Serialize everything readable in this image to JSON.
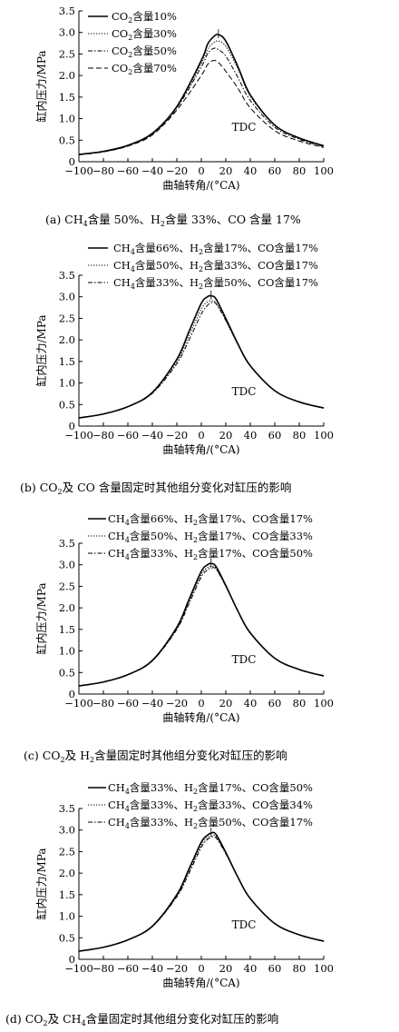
{
  "chart_data": [
    {
      "type": "line",
      "caption": "(a) CH₄含量 50%、H₂含量 33%、CO 含量 17%",
      "xlabel": "曲轴转角/(°CA)",
      "ylabel": "缸内压力/MPa",
      "xlim": [
        -100,
        100
      ],
      "ylim": [
        0,
        3.5
      ],
      "xticks": [
        "−100",
        "−80",
        "−60",
        "−40",
        "−20",
        "0",
        "20",
        "40",
        "60",
        "80",
        "100"
      ],
      "yticks": [
        "0",
        "0.5",
        "1.0",
        "1.5",
        "2.0",
        "2.5",
        "3.0",
        "3.5"
      ],
      "annotation": "TDC",
      "legend_position": "top-left",
      "series": [
        {
          "name": "CO₂含量10%",
          "style": "solid",
          "x": [
            -100,
            -80,
            -60,
            -40,
            -20,
            0,
            5,
            10,
            14,
            20,
            30,
            40,
            60,
            80,
            100
          ],
          "y": [
            0.17,
            0.24,
            0.38,
            0.66,
            1.28,
            2.35,
            2.72,
            2.9,
            2.95,
            2.8,
            2.2,
            1.55,
            0.85,
            0.55,
            0.37
          ]
        },
        {
          "name": "CO₂含量30%",
          "style": "dotted",
          "x": [
            -100,
            -80,
            -60,
            -40,
            -20,
            0,
            5,
            10,
            14,
            20,
            30,
            40,
            60,
            80,
            100
          ],
          "y": [
            0.17,
            0.24,
            0.38,
            0.66,
            1.27,
            2.28,
            2.6,
            2.76,
            2.8,
            2.68,
            2.15,
            1.52,
            0.84,
            0.55,
            0.37
          ]
        },
        {
          "name": "CO₂含量50%",
          "style": "dashdot",
          "x": [
            -100,
            -80,
            -60,
            -40,
            -20,
            0,
            5,
            10,
            14,
            20,
            30,
            40,
            60,
            80,
            100
          ],
          "y": [
            0.16,
            0.23,
            0.37,
            0.64,
            1.25,
            2.2,
            2.5,
            2.63,
            2.6,
            2.45,
            1.95,
            1.42,
            0.8,
            0.52,
            0.35
          ]
        },
        {
          "name": "CO₂含量70%",
          "style": "dashed",
          "x": [
            -100,
            -80,
            -60,
            -40,
            -20,
            0,
            5,
            10,
            14,
            20,
            30,
            40,
            60,
            80,
            100
          ],
          "y": [
            0.16,
            0.23,
            0.36,
            0.62,
            1.2,
            2.0,
            2.25,
            2.35,
            2.3,
            2.1,
            1.7,
            1.25,
            0.72,
            0.48,
            0.33
          ]
        }
      ]
    },
    {
      "type": "line",
      "caption": "(b) CO₂及 CO 含量固定时其他组分变化对缸压的影响",
      "xlabel": "曲轴转角/(°CA)",
      "ylabel": "缸内压力/MPa",
      "xlim": [
        -100,
        100
      ],
      "ylim": [
        0,
        3.5
      ],
      "xticks": [
        "−100",
        "−80",
        "−60",
        "−40",
        "−20",
        "0",
        "20",
        "40",
        "60",
        "80",
        "100"
      ],
      "yticks": [
        "0",
        "0.5",
        "1.0",
        "1.5",
        "2.0",
        "2.5",
        "3.0",
        "3.5"
      ],
      "annotation": "TDC",
      "legend_position": "top",
      "series": [
        {
          "name": "CH₄含量66%、H₂含量17%、CO含量17%",
          "style": "solid",
          "x": [
            -100,
            -80,
            -60,
            -40,
            -20,
            -10,
            0,
            5,
            8,
            12,
            20,
            30,
            40,
            60,
            80,
            100
          ],
          "y": [
            0.19,
            0.28,
            0.45,
            0.78,
            1.55,
            2.2,
            2.85,
            3.0,
            3.02,
            2.95,
            2.5,
            1.9,
            1.4,
            0.82,
            0.56,
            0.42
          ]
        },
        {
          "name": "CH₄含量50%、H₂含量33%、CO含量17%",
          "style": "dotted",
          "x": [
            -100,
            -80,
            -60,
            -40,
            -20,
            -10,
            0,
            5,
            8,
            12,
            20,
            30,
            40,
            60,
            80,
            100
          ],
          "y": [
            0.19,
            0.28,
            0.45,
            0.77,
            1.5,
            2.1,
            2.72,
            2.88,
            2.9,
            2.86,
            2.45,
            1.88,
            1.39,
            0.82,
            0.56,
            0.42
          ]
        },
        {
          "name": "CH₄含量33%、H₂含量50%、CO含量17%",
          "style": "dashdot",
          "x": [
            -100,
            -80,
            -60,
            -40,
            -20,
            -10,
            0,
            5,
            8,
            12,
            20,
            30,
            40,
            60,
            80,
            100
          ],
          "y": [
            0.19,
            0.28,
            0.45,
            0.76,
            1.45,
            2.0,
            2.6,
            2.8,
            2.86,
            2.84,
            2.45,
            1.9,
            1.4,
            0.82,
            0.56,
            0.42
          ]
        }
      ]
    },
    {
      "type": "line",
      "caption": "(c) CO₂及 H₂含量固定时其他组分变化对缸压的影响",
      "xlabel": "曲轴转角/(°CA)",
      "ylabel": "缸内压力/MPa",
      "xlim": [
        -100,
        100
      ],
      "ylim": [
        0,
        3.5
      ],
      "xticks": [
        "−100",
        "−80",
        "−60",
        "−40",
        "−20",
        "0",
        "20",
        "40",
        "60",
        "80",
        "100"
      ],
      "yticks": [
        "0",
        "0.5",
        "1.0",
        "1.5",
        "2.0",
        "2.5",
        "3.0",
        "3.5"
      ],
      "annotation": "TDC",
      "legend_position": "top",
      "series": [
        {
          "name": "CH₄含量66%、H₂含量17%、CO含量17%",
          "style": "solid",
          "x": [
            -100,
            -80,
            -60,
            -40,
            -20,
            -10,
            0,
            5,
            8,
            12,
            20,
            30,
            40,
            60,
            80,
            100
          ],
          "y": [
            0.19,
            0.28,
            0.45,
            0.78,
            1.55,
            2.2,
            2.85,
            3.0,
            3.03,
            2.96,
            2.52,
            1.92,
            1.42,
            0.83,
            0.57,
            0.42
          ]
        },
        {
          "name": "CH₄含量50%、H₂含量17%、CO含量33%",
          "style": "dotted",
          "x": [
            -100,
            -80,
            -60,
            -40,
            -20,
            -10,
            0,
            5,
            8,
            12,
            20,
            30,
            40,
            60,
            80,
            100
          ],
          "y": [
            0.19,
            0.28,
            0.45,
            0.77,
            1.52,
            2.15,
            2.78,
            2.93,
            2.96,
            2.92,
            2.5,
            1.91,
            1.41,
            0.83,
            0.57,
            0.42
          ]
        },
        {
          "name": "CH₄含量33%、H₂含量17%、CO含量50%",
          "style": "dashdot",
          "x": [
            -100,
            -80,
            -60,
            -40,
            -20,
            -10,
            0,
            5,
            8,
            12,
            20,
            30,
            40,
            60,
            80,
            100
          ],
          "y": [
            0.19,
            0.28,
            0.45,
            0.77,
            1.5,
            2.1,
            2.72,
            2.88,
            2.92,
            2.9,
            2.5,
            1.92,
            1.42,
            0.83,
            0.57,
            0.42
          ]
        }
      ]
    },
    {
      "type": "line",
      "caption": "(d) CO₂及 CH₄含量固定时其他组分变化对缸压的影响",
      "xlabel": "曲轴转角/(°CA)",
      "ylabel": "缸内压力/MPa",
      "xlim": [
        -100,
        100
      ],
      "ylim": [
        0,
        3.5
      ],
      "xticks": [
        "−100",
        "−80",
        "−60",
        "−40",
        "−20",
        "0",
        "20",
        "40",
        "60",
        "80",
        "100"
      ],
      "yticks": [
        "0",
        "0.5",
        "1.0",
        "1.5",
        "2.0",
        "2.5",
        "3.0",
        "3.5"
      ],
      "annotation": "TDC",
      "legend_position": "top",
      "series": [
        {
          "name": "CH₄含量33%、H₂含量17%、CO含量50%",
          "style": "solid",
          "x": [
            -100,
            -80,
            -60,
            -40,
            -20,
            -10,
            0,
            5,
            8,
            12,
            20,
            30,
            40,
            60,
            80,
            100
          ],
          "y": [
            0.19,
            0.28,
            0.45,
            0.77,
            1.5,
            2.1,
            2.72,
            2.88,
            2.93,
            2.9,
            2.48,
            1.9,
            1.41,
            0.83,
            0.57,
            0.42
          ]
        },
        {
          "name": "CH₄含量33%、H₂含量33%、CO含量34%",
          "style": "dotted",
          "x": [
            -100,
            -80,
            -60,
            -40,
            -20,
            -10,
            0,
            5,
            8,
            12,
            20,
            30,
            40,
            60,
            80,
            100
          ],
          "y": [
            0.19,
            0.28,
            0.45,
            0.76,
            1.47,
            2.05,
            2.65,
            2.82,
            2.86,
            2.85,
            2.46,
            1.9,
            1.41,
            0.83,
            0.57,
            0.42
          ]
        },
        {
          "name": "CH₄含量33%、H₂含量50%、CO含量17%",
          "style": "dashdot",
          "x": [
            -100,
            -80,
            -60,
            -40,
            -20,
            -10,
            0,
            5,
            8,
            12,
            20,
            30,
            40,
            60,
            80,
            100
          ],
          "y": [
            0.19,
            0.28,
            0.45,
            0.76,
            1.45,
            2.0,
            2.6,
            2.78,
            2.83,
            2.82,
            2.45,
            1.9,
            1.41,
            0.83,
            0.57,
            0.42
          ]
        }
      ]
    }
  ]
}
